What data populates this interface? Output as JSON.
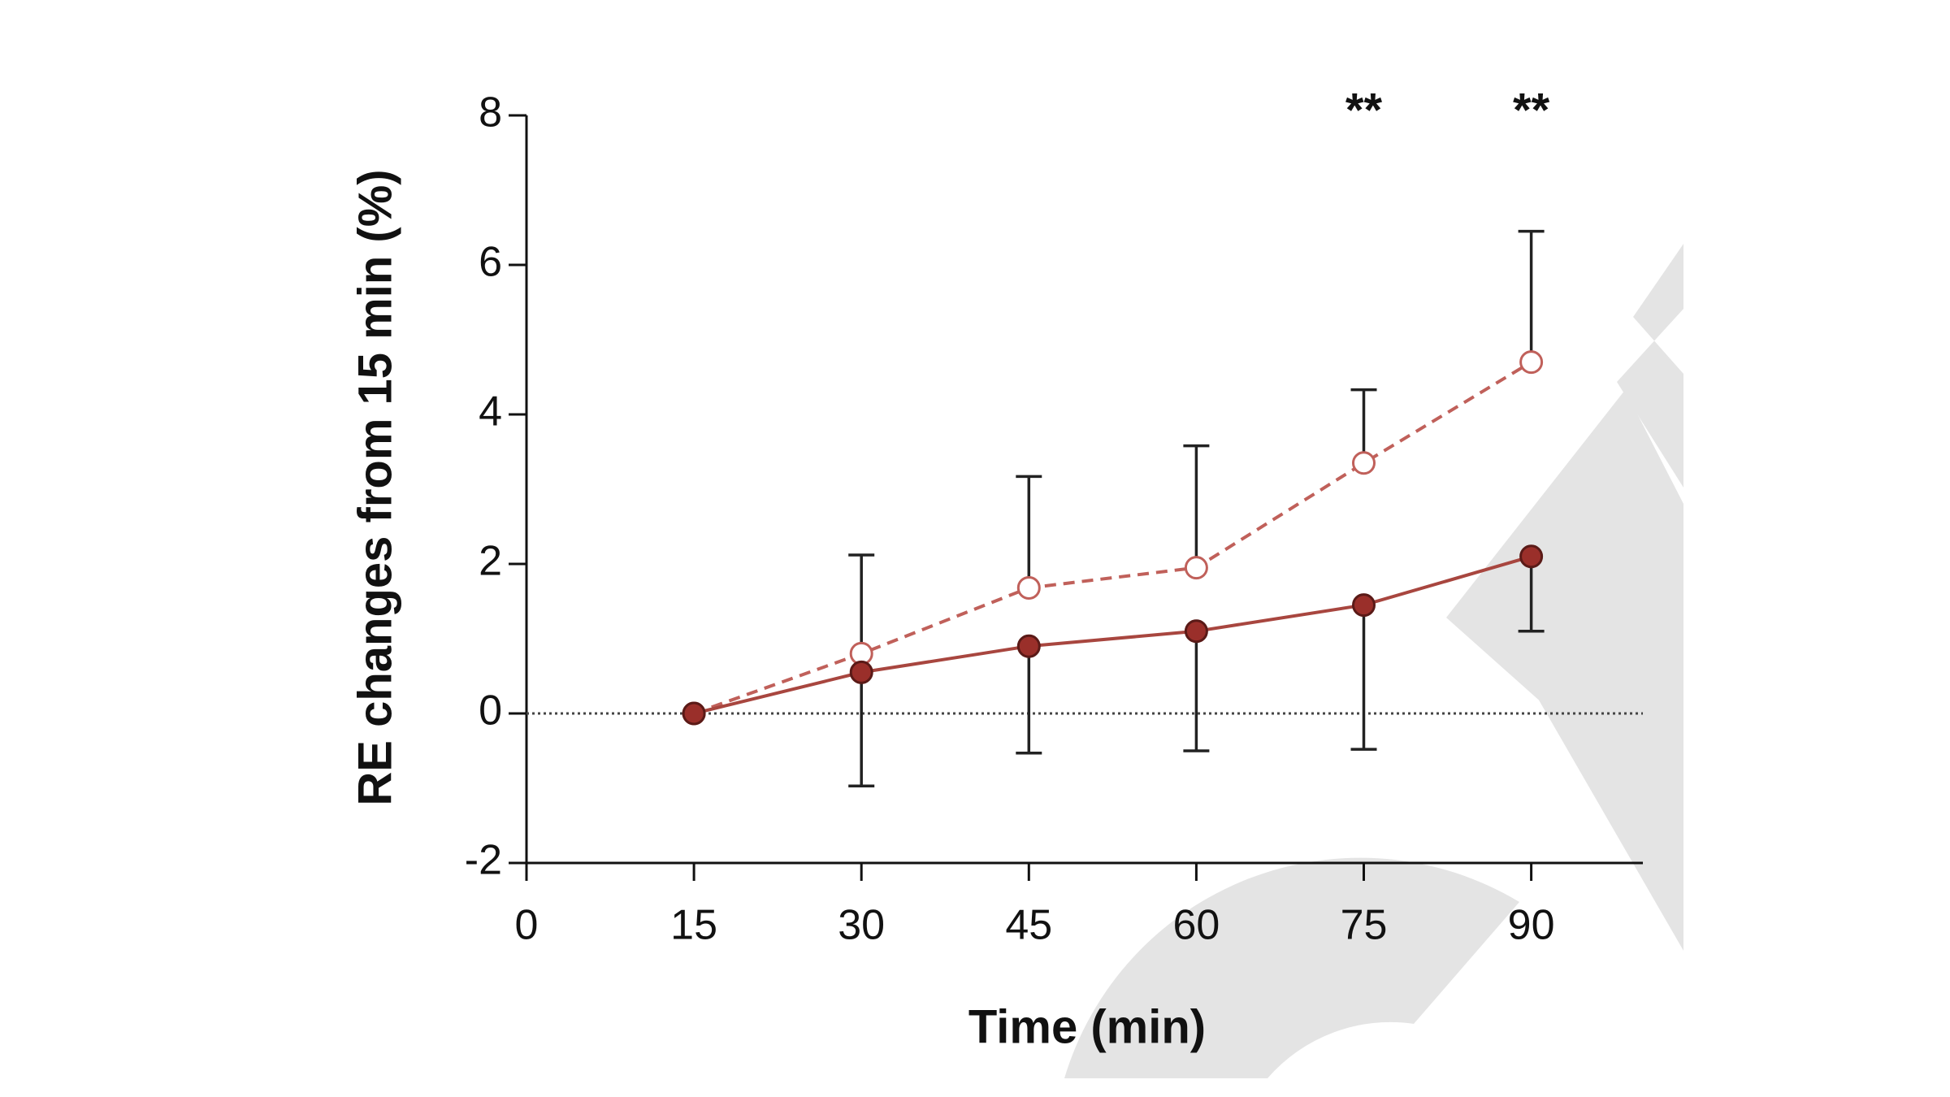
{
  "chart_data": {
    "type": "line",
    "xlabel": "Time (min)",
    "ylabel": "RE changes from 15 min (%)",
    "x": [
      15,
      30,
      45,
      60,
      75,
      90
    ],
    "series": [
      {
        "color": "#a8463f",
        "style": "solid",
        "marker": "filled",
        "values": [
          0,
          0.55,
          0.9,
          1.1,
          1.45,
          2.1
        ],
        "errors": [
          0,
          1.52,
          1.43,
          1.6,
          1.93,
          1.0
        ],
        "error_direction": "down"
      },
      {
        "color": "#c0605a",
        "style": "dashed",
        "marker": "open",
        "values": [
          0,
          0.8,
          1.68,
          1.95,
          3.35,
          4.7
        ],
        "errors": [
          0,
          1.32,
          1.49,
          1.63,
          0.98,
          1.75
        ],
        "error_direction": "up"
      }
    ],
    "annotations": [
      {
        "text": "**",
        "x": 75
      },
      {
        "text": "**",
        "x": 90
      }
    ],
    "xlim": [
      0,
      100
    ],
    "ylim": [
      -2,
      8
    ],
    "xticks": [
      0,
      15,
      30,
      45,
      60,
      75,
      90
    ],
    "yticks": [
      -2,
      0,
      2,
      4,
      6,
      8
    ],
    "reference_line": 0
  }
}
